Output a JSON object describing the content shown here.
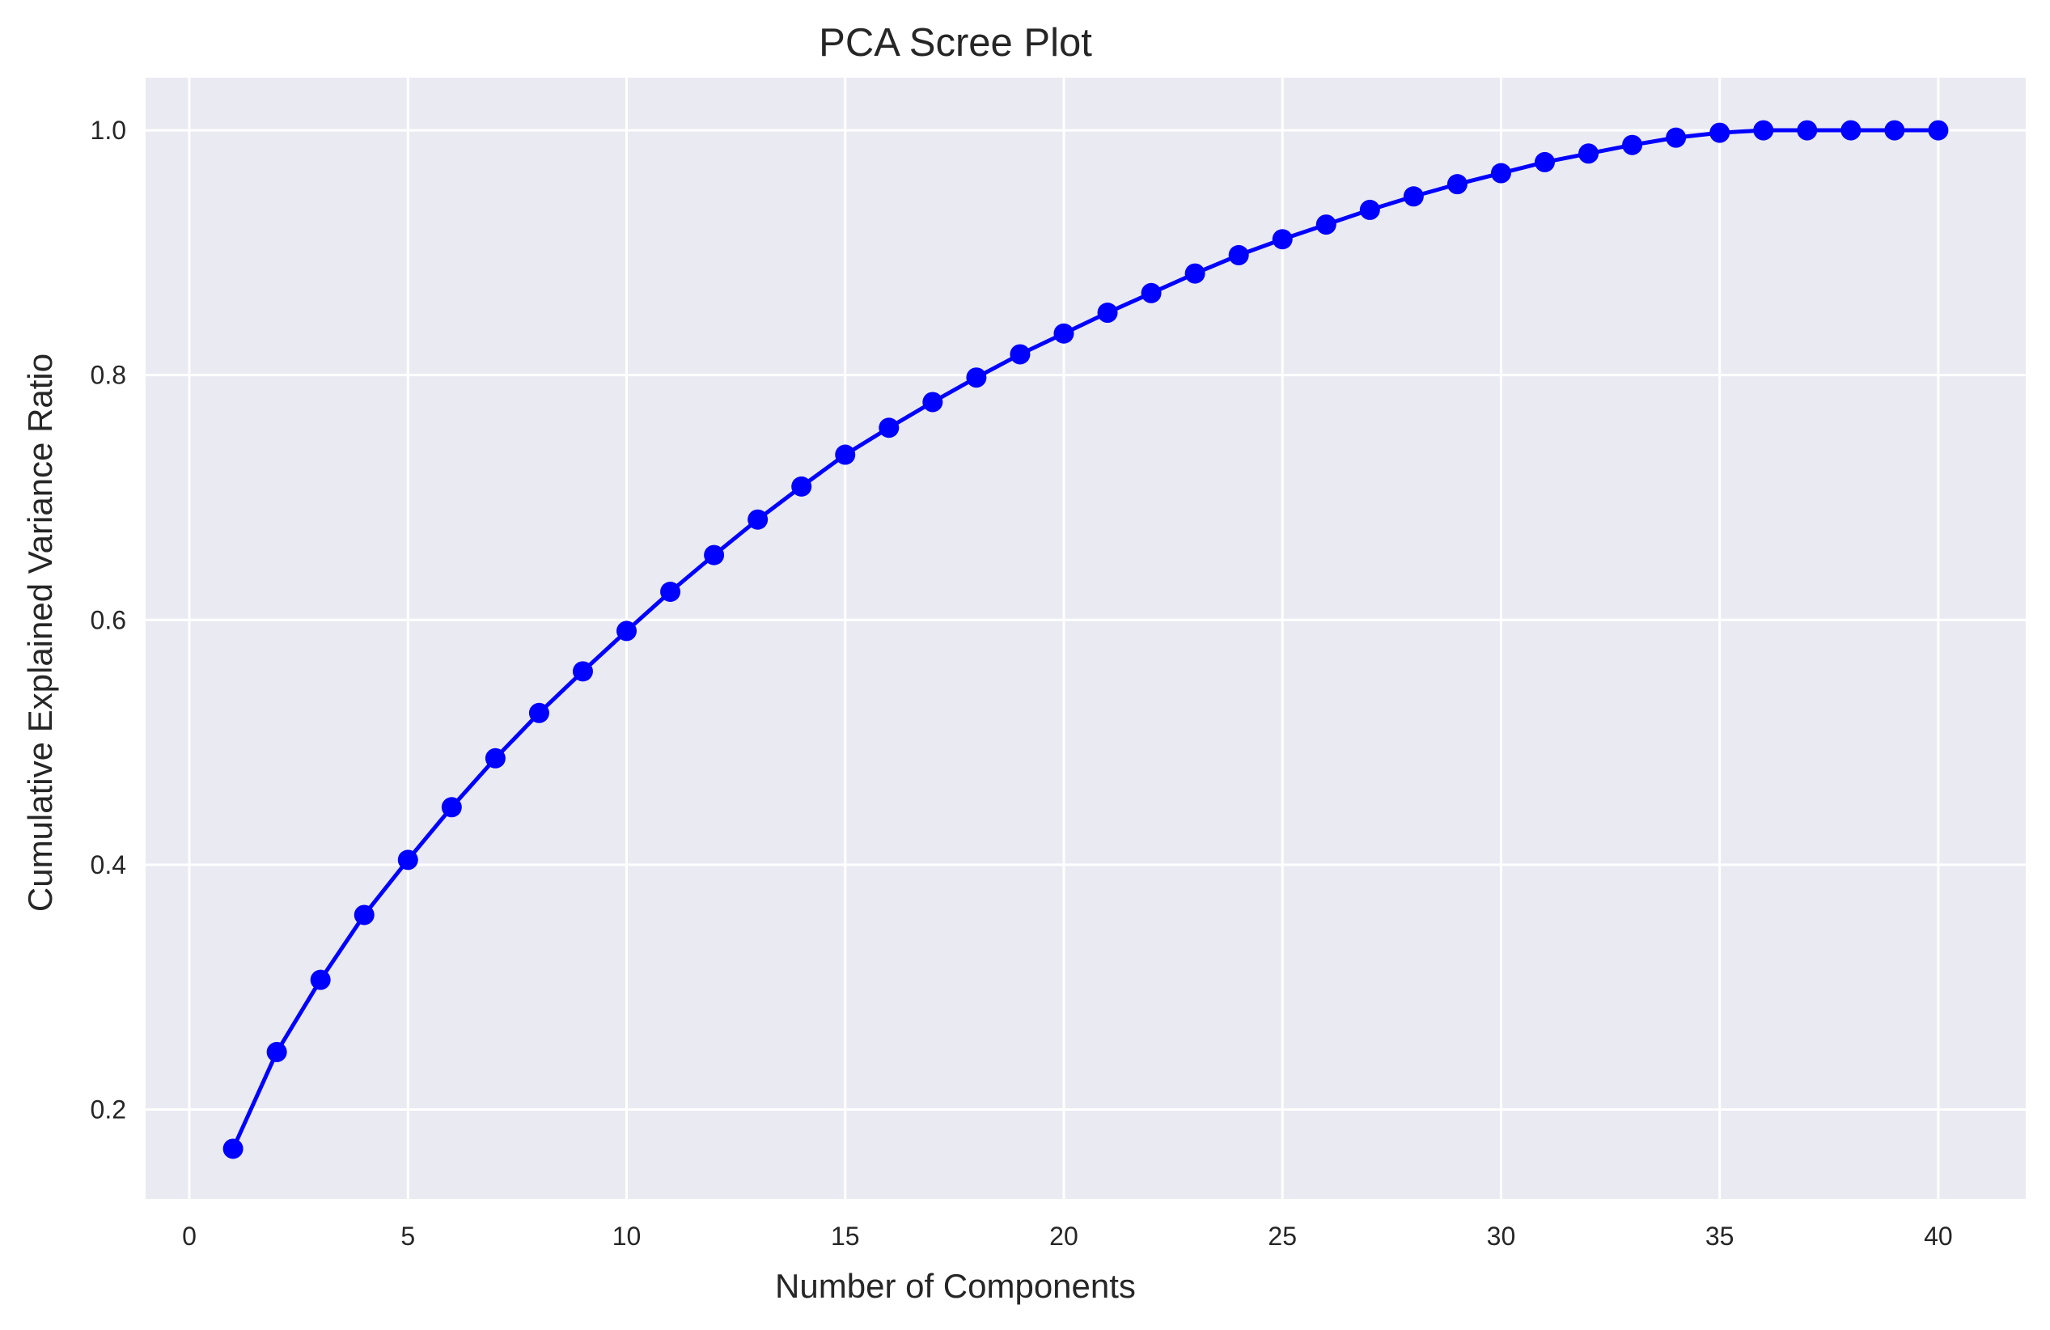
{
  "chart_data": {
    "type": "line",
    "title": "PCA Scree Plot",
    "xlabel": "Number of Components",
    "ylabel": "Cumulative Explained Variance Ratio",
    "xlim": [
      -1,
      42
    ],
    "ylim": [
      0.127,
      1.043
    ],
    "xticks": [
      0,
      5,
      10,
      15,
      20,
      25,
      30,
      35,
      40
    ],
    "yticks": [
      0.2,
      0.4,
      0.6,
      0.8,
      1.0
    ],
    "xtick_labels": [
      "0",
      "5",
      "10",
      "15",
      "20",
      "25",
      "30",
      "35",
      "40"
    ],
    "ytick_labels": [
      "0.2",
      "0.4",
      "0.6",
      "0.8",
      "1.0"
    ],
    "grid": true,
    "background_color": "#eaeaf2",
    "grid_color": "#ffffff",
    "series": [
      {
        "color": "#0000ff",
        "marker": "circle",
        "x": [
          1,
          2,
          3,
          4,
          5,
          6,
          7,
          8,
          9,
          10,
          11,
          12,
          13,
          14,
          15,
          16,
          17,
          18,
          19,
          20,
          21,
          22,
          23,
          24,
          25,
          26,
          27,
          28,
          29,
          30,
          31,
          32,
          33,
          34,
          35,
          36,
          37,
          38,
          39,
          40
        ],
        "y": [
          0.168,
          0.247,
          0.306,
          0.359,
          0.404,
          0.447,
          0.487,
          0.524,
          0.558,
          0.591,
          0.623,
          0.653,
          0.682,
          0.709,
          0.735,
          0.757,
          0.778,
          0.798,
          0.817,
          0.834,
          0.851,
          0.867,
          0.883,
          0.898,
          0.911,
          0.923,
          0.935,
          0.946,
          0.956,
          0.965,
          0.974,
          0.981,
          0.988,
          0.994,
          0.998,
          1.0,
          1.0,
          1.0,
          1.0,
          1.0
        ]
      }
    ]
  }
}
